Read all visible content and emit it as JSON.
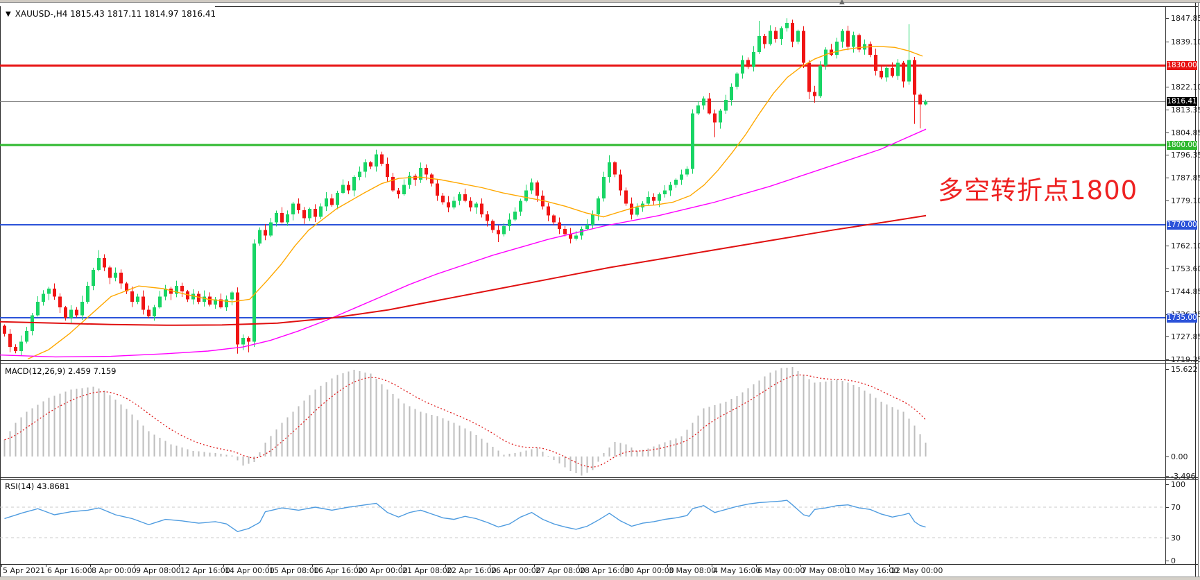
{
  "header": {
    "symbol_ohlc": "XAUUSD-,H4  1815.43 1817.11 1814.97 1816.41",
    "dropdown_icon": "symbol-dropdown"
  },
  "annotation": {
    "text": "多空转折点1800",
    "color": "#ee2222"
  },
  "price_axis": {
    "ticks": [
      1847.85,
      1839.1,
      1822.1,
      1813.35,
      1804.85,
      1796.35,
      1787.85,
      1779.1,
      1762.1,
      1753.6,
      1744.85,
      1736.35,
      1727.85,
      1719.35
    ],
    "current_price": {
      "label": "1816.41",
      "price": 1816.41,
      "bg": "#000000",
      "line_color": "#808080",
      "line_width": 1
    },
    "levels": [
      {
        "label": "1830.00",
        "price": 1830.0,
        "bg": "#e81313",
        "line_color": "#e81313",
        "line_width": 3
      },
      {
        "label": "1800.00",
        "price": 1800.0,
        "bg": "#2eb82e",
        "line_color": "#2eb82e",
        "line_width": 3
      },
      {
        "label": "1770.00",
        "price": 1770.0,
        "bg": "#2b52d9",
        "line_color": "#2b52d9",
        "line_width": 2
      },
      {
        "label": "1735.00",
        "price": 1735.0,
        "bg": "#2b52d9",
        "line_color": "#2b52d9",
        "line_width": 2
      }
    ]
  },
  "time_axis": {
    "labels": [
      "5 Apr 2021",
      "6 Apr 16:00",
      "8 Apr 00:00",
      "9 Apr 08:00",
      "12 Apr 16:00",
      "14 Apr 00:00",
      "15 Apr 08:00",
      "16 Apr 16:00",
      "20 Apr 00:00",
      "21 Apr 08:00",
      "22 Apr 16:00",
      "26 Apr 00:00",
      "27 Apr 08:00",
      "28 Apr 16:00",
      "30 Apr 00:00",
      "3 May 08:00",
      "4 May 16:00",
      "6 May 00:00",
      "7 May 08:00",
      "10 May 16:00",
      "12 May 00:00"
    ]
  },
  "indicators": {
    "macd": {
      "label": "MACD(12,26,9) 2.459 7.159",
      "ticks": [
        {
          "label": "15.622",
          "value": 15.622
        },
        {
          "label": "0.00",
          "value": 0
        },
        {
          "label": "-3.496",
          "value": -3.496
        }
      ],
      "histogram_color": "#bdbdbd",
      "signal_color": "#e02020"
    },
    "rsi": {
      "label": "RSI(14) 43.8681",
      "ticks": [
        {
          "label": "100",
          "value": 100
        },
        {
          "label": "70",
          "value": 70
        },
        {
          "label": "30",
          "value": 30
        },
        {
          "label": "0",
          "value": 0
        }
      ],
      "dashed_levels": [
        70,
        30
      ],
      "line_color": "#4f9ce0"
    }
  },
  "chart_data": {
    "type": "candlestick",
    "symbol": "XAUUSD-",
    "timeframe": "H4",
    "up_color": "#18d565",
    "down_color": "#f01414",
    "first_open": 1732,
    "closes": [
      1729,
      1724,
      1722.5,
      1726,
      1730,
      1736,
      1741,
      1744,
      1746,
      1743,
      1739,
      1735,
      1738,
      1736,
      1741,
      1747,
      1753,
      1757.5,
      1754,
      1750,
      1752,
      1748,
      1745,
      1741,
      1743,
      1738,
      1735.5,
      1739,
      1743,
      1746,
      1744,
      1747,
      1745,
      1742,
      1744,
      1741,
      1743,
      1740,
      1742,
      1739,
      1742,
      1744.5,
      1725,
      1727.5,
      1726,
      1763,
      1768,
      1766,
      1771,
      1774.5,
      1771,
      1774,
      1778,
      1775.5,
      1772.5,
      1776,
      1773,
      1777,
      1780,
      1777.5,
      1782,
      1785,
      1783,
      1788,
      1790,
      1793.5,
      1792,
      1796.5,
      1793,
      1788,
      1783,
      1781.5,
      1785,
      1788.5,
      1787,
      1791.5,
      1789,
      1785.5,
      1781,
      1778.5,
      1776.5,
      1779,
      1781.5,
      1779,
      1776.5,
      1778,
      1774,
      1771.5,
      1768,
      1766.5,
      1769.5,
      1772,
      1775,
      1779,
      1783,
      1786,
      1781,
      1777,
      1773.5,
      1771,
      1768.5,
      1766.5,
      1764.8,
      1766,
      1768.5,
      1770,
      1774,
      1780,
      1788,
      1793.5,
      1789,
      1783,
      1778,
      1773.8,
      1776.5,
      1778,
      1780.5,
      1779,
      1781.5,
      1783,
      1785,
      1787,
      1789,
      1791,
      1812,
      1815,
      1817.5,
      1812,
      1808.5,
      1813,
      1817,
      1822,
      1827,
      1832,
      1829.5,
      1835,
      1841,
      1838,
      1843,
      1840,
      1844,
      1846,
      1839,
      1843,
      1831,
      1820,
      1818.5,
      1830,
      1836,
      1834,
      1839,
      1843,
      1837,
      1841.5,
      1836,
      1838,
      1834,
      1828,
      1825.5,
      1829,
      1826,
      1831,
      1824,
      1832,
      1819,
      1815.4,
      1816.41
    ],
    "wick_overrides": {
      "17": [
        1760.5,
        null
      ],
      "42": [
        null,
        1721.5
      ],
      "44": [
        null,
        1722
      ],
      "45": [
        1764.5,
        null
      ],
      "67": [
        1798.3,
        null
      ],
      "89": [
        null,
        1763.5
      ],
      "109": [
        1796.2,
        null
      ],
      "124": [
        1813.5,
        null
      ],
      "128": [
        null,
        1803
      ],
      "136": [
        1846.8,
        null
      ],
      "141": [
        1847.8,
        null
      ],
      "145": [
        null,
        1817.3
      ],
      "146": [
        null,
        1816
      ],
      "163": [
        1845.5,
        null
      ],
      "164": [
        null,
        1808
      ],
      "165": [
        null,
        1806.3
      ],
      "166": [
        1817.11,
        1814.97
      ]
    },
    "ma_lines": [
      {
        "name": "ma-fast-orange",
        "color": "#ffa800",
        "width": 1.4,
        "points": [
          [
            40,
            1719.5
          ],
          [
            70,
            1723
          ],
          [
            100,
            1729
          ],
          [
            130,
            1736
          ],
          [
            160,
            1743
          ],
          [
            200,
            1747
          ],
          [
            235,
            1746
          ],
          [
            265,
            1744
          ],
          [
            300,
            1742
          ],
          [
            335,
            1741
          ],
          [
            360,
            1742
          ],
          [
            385,
            1749
          ],
          [
            405,
            1755
          ],
          [
            425,
            1762
          ],
          [
            445,
            1768
          ],
          [
            465,
            1772
          ],
          [
            485,
            1776
          ],
          [
            505,
            1779
          ],
          [
            525,
            1782
          ],
          [
            550,
            1785.5
          ],
          [
            575,
            1787.5
          ],
          [
            605,
            1788
          ],
          [
            635,
            1787
          ],
          [
            665,
            1785.5
          ],
          [
            695,
            1784
          ],
          [
            725,
            1782
          ],
          [
            755,
            1780.5
          ],
          [
            785,
            1779
          ],
          [
            815,
            1777
          ],
          [
            845,
            1774.5
          ],
          [
            870,
            1773
          ],
          [
            895,
            1775
          ],
          [
            920,
            1777
          ],
          [
            945,
            1777.5
          ],
          [
            970,
            1778.5
          ],
          [
            995,
            1781
          ],
          [
            1015,
            1785
          ],
          [
            1035,
            1790.5
          ],
          [
            1055,
            1797
          ],
          [
            1075,
            1804
          ],
          [
            1095,
            1812
          ],
          [
            1115,
            1819.5
          ],
          [
            1135,
            1825.5
          ],
          [
            1155,
            1829.5
          ],
          [
            1175,
            1832.5
          ],
          [
            1195,
            1834.5
          ],
          [
            1215,
            1835.8
          ],
          [
            1240,
            1836.8
          ],
          [
            1265,
            1837.2
          ],
          [
            1290,
            1836.8
          ],
          [
            1310,
            1835.5
          ],
          [
            1330,
            1833.5
          ]
        ]
      },
      {
        "name": "ma-mid-magenta",
        "color": "#ff00ff",
        "width": 1.4,
        "points": [
          [
            0,
            1721
          ],
          [
            80,
            1720.3
          ],
          [
            160,
            1720.5
          ],
          [
            240,
            1721.5
          ],
          [
            300,
            1722.5
          ],
          [
            350,
            1724
          ],
          [
            390,
            1726.5
          ],
          [
            430,
            1730
          ],
          [
            470,
            1734
          ],
          [
            510,
            1738.5
          ],
          [
            550,
            1743
          ],
          [
            590,
            1747.5
          ],
          [
            630,
            1751.5
          ],
          [
            670,
            1755
          ],
          [
            710,
            1758.5
          ],
          [
            750,
            1761.5
          ],
          [
            790,
            1764.5
          ],
          [
            830,
            1767
          ],
          [
            870,
            1769.5
          ],
          [
            910,
            1771.5
          ],
          [
            950,
            1773.5
          ],
          [
            990,
            1776
          ],
          [
            1030,
            1778.5
          ],
          [
            1070,
            1781.5
          ],
          [
            1110,
            1784.5
          ],
          [
            1150,
            1788
          ],
          [
            1190,
            1791.5
          ],
          [
            1230,
            1795
          ],
          [
            1270,
            1798.5
          ],
          [
            1300,
            1802
          ],
          [
            1335,
            1806
          ]
        ]
      },
      {
        "name": "ma-slow-red",
        "color": "#e01010",
        "width": 2,
        "points": [
          [
            0,
            1733.5
          ],
          [
            80,
            1733
          ],
          [
            160,
            1732.5
          ],
          [
            240,
            1732.2
          ],
          [
            320,
            1732.3
          ],
          [
            400,
            1733
          ],
          [
            480,
            1735
          ],
          [
            560,
            1738
          ],
          [
            640,
            1742
          ],
          [
            720,
            1746
          ],
          [
            800,
            1750
          ],
          [
            880,
            1754
          ],
          [
            960,
            1757.5
          ],
          [
            1040,
            1761
          ],
          [
            1120,
            1764.5
          ],
          [
            1200,
            1768
          ],
          [
            1270,
            1770.8
          ],
          [
            1335,
            1773.5
          ]
        ]
      }
    ],
    "macd_main_waypoints": [
      [
        0,
        3
      ],
      [
        2,
        6
      ],
      [
        4,
        8
      ],
      [
        8,
        10.5
      ],
      [
        12,
        12
      ],
      [
        16,
        12.5
      ],
      [
        18,
        11.8
      ],
      [
        22,
        8.5
      ],
      [
        26,
        4.5
      ],
      [
        30,
        2.2
      ],
      [
        34,
        1
      ],
      [
        38,
        0.6
      ],
      [
        41,
        0.2
      ],
      [
        43,
        -1.6
      ],
      [
        45,
        -1
      ],
      [
        47,
        2.5
      ],
      [
        50,
        6
      ],
      [
        53,
        9
      ],
      [
        56,
        12
      ],
      [
        60,
        14.6
      ],
      [
        63,
        15.5
      ],
      [
        66,
        14.8
      ],
      [
        69,
        12
      ],
      [
        72,
        9.5
      ],
      [
        75,
        8
      ],
      [
        78,
        7.2
      ],
      [
        81,
        6
      ],
      [
        84,
        4.5
      ],
      [
        87,
        2.5
      ],
      [
        90,
        0.3
      ],
      [
        93,
        0.8
      ],
      [
        96,
        1.6
      ],
      [
        99,
        -0.6
      ],
      [
        102,
        -2.6
      ],
      [
        104,
        -3.4
      ],
      [
        106,
        -2.4
      ],
      [
        108,
        0.6
      ],
      [
        110,
        2.6
      ],
      [
        112,
        2.2
      ],
      [
        114,
        1
      ],
      [
        116,
        1.4
      ],
      [
        118,
        2.2
      ],
      [
        120,
        2.9
      ],
      [
        122,
        3.6
      ],
      [
        124,
        6
      ],
      [
        126,
        8.6
      ],
      [
        128,
        9.2
      ],
      [
        130,
        9.8
      ],
      [
        132,
        10.8
      ],
      [
        134,
        12.2
      ],
      [
        136,
        13.6
      ],
      [
        138,
        15
      ],
      [
        140,
        15.8
      ],
      [
        142,
        16
      ],
      [
        144,
        14.5
      ],
      [
        146,
        13.2
      ],
      [
        148,
        13.4
      ],
      [
        150,
        13.8
      ],
      [
        152,
        13.2
      ],
      [
        154,
        12.4
      ],
      [
        156,
        11.2
      ],
      [
        158,
        9.8
      ],
      [
        160,
        8.8
      ],
      [
        162,
        8
      ],
      [
        164,
        5.5
      ],
      [
        166,
        2.5
      ]
    ],
    "rsi_waypoints": [
      [
        0,
        55
      ],
      [
        3,
        62
      ],
      [
        6,
        68
      ],
      [
        9,
        60
      ],
      [
        12,
        64
      ],
      [
        15,
        66
      ],
      [
        17,
        69
      ],
      [
        20,
        60
      ],
      [
        23,
        55
      ],
      [
        26,
        47
      ],
      [
        29,
        54
      ],
      [
        32,
        52
      ],
      [
        35,
        49
      ],
      [
        38,
        51
      ],
      [
        40,
        48
      ],
      [
        42,
        38
      ],
      [
        44,
        42
      ],
      [
        46,
        50
      ],
      [
        47,
        64
      ],
      [
        50,
        69
      ],
      [
        53,
        66
      ],
      [
        56,
        70
      ],
      [
        59,
        66
      ],
      [
        62,
        70
      ],
      [
        65,
        73
      ],
      [
        67,
        75
      ],
      [
        69,
        63
      ],
      [
        71,
        57
      ],
      [
        73,
        63
      ],
      [
        75,
        66
      ],
      [
        77,
        61
      ],
      [
        79,
        56
      ],
      [
        81,
        54
      ],
      [
        83,
        58
      ],
      [
        85,
        55
      ],
      [
        87,
        50
      ],
      [
        89,
        44
      ],
      [
        91,
        48
      ],
      [
        93,
        57
      ],
      [
        95,
        63
      ],
      [
        97,
        54
      ],
      [
        99,
        48
      ],
      [
        101,
        44
      ],
      [
        103,
        41
      ],
      [
        105,
        45
      ],
      [
        107,
        53
      ],
      [
        109,
        62
      ],
      [
        111,
        52
      ],
      [
        113,
        45
      ],
      [
        115,
        49
      ],
      [
        117,
        51
      ],
      [
        119,
        54
      ],
      [
        121,
        56
      ],
      [
        123,
        59
      ],
      [
        124,
        68
      ],
      [
        126,
        72
      ],
      [
        128,
        63
      ],
      [
        130,
        67
      ],
      [
        132,
        71
      ],
      [
        134,
        74
      ],
      [
        136,
        76
      ],
      [
        138,
        77
      ],
      [
        140,
        78
      ],
      [
        141,
        79
      ],
      [
        142,
        73
      ],
      [
        144,
        60
      ],
      [
        145,
        58
      ],
      [
        146,
        67
      ],
      [
        148,
        69
      ],
      [
        150,
        72
      ],
      [
        152,
        73
      ],
      [
        154,
        69
      ],
      [
        156,
        67
      ],
      [
        158,
        61
      ],
      [
        160,
        57
      ],
      [
        162,
        60
      ],
      [
        163,
        62
      ],
      [
        164,
        51
      ],
      [
        165,
        46
      ],
      [
        166,
        43.87
      ]
    ]
  }
}
